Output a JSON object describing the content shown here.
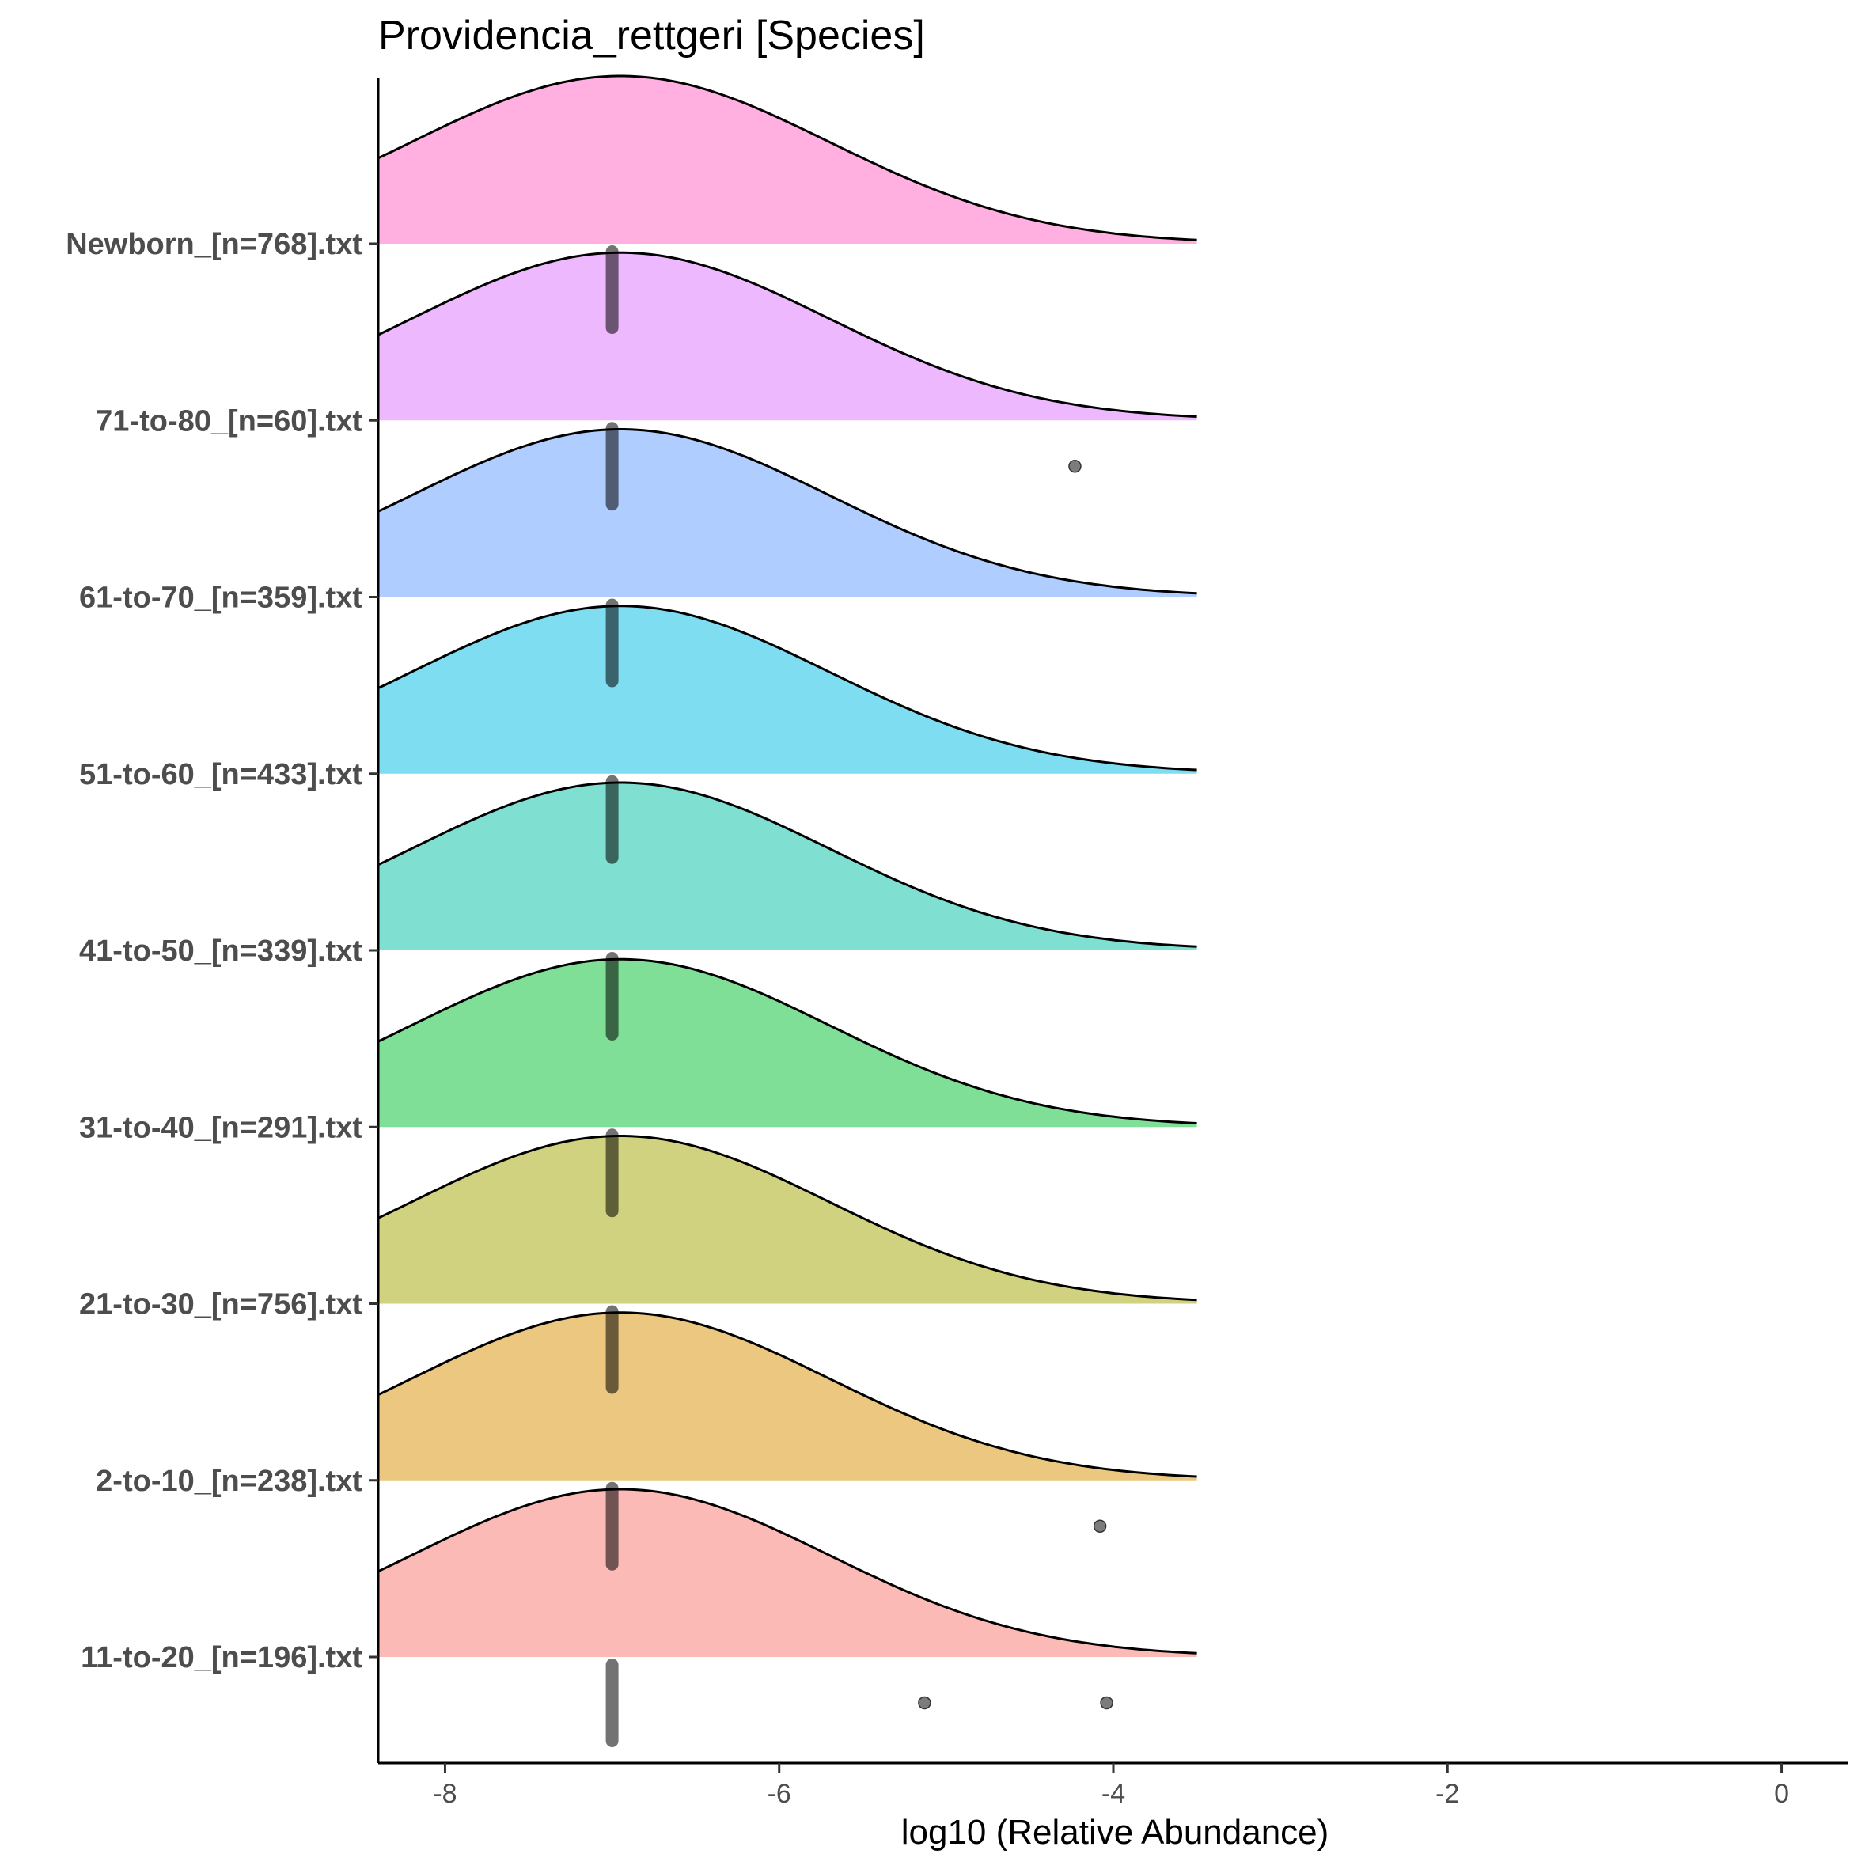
{
  "chart_data": {
    "type": "ridgeline",
    "title": "Providencia_rettgeri [Species]",
    "xlabel": "log10 (Relative Abundance)",
    "ylabel": "",
    "xlim": [
      -8.4,
      0.4
    ],
    "x_ticks": [
      -8,
      -6,
      -4,
      -2,
      0
    ],
    "x_tick_labels": [
      "-8",
      "-6",
      "-4",
      "-2",
      "0"
    ],
    "density_range": [
      -8.4,
      -3.5
    ],
    "series": [
      {
        "name": "11-to-20_[n=196].txt",
        "color": "#F8766D",
        "density_peak": -6.95,
        "density_sd": 1.25,
        "median": -7,
        "box": [
          -7,
          -7
        ],
        "outliers": [
          -5.13,
          -4.04
        ]
      },
      {
        "name": "2-to-10_[n=238].txt",
        "color": "#D89000",
        "density_peak": -6.95,
        "density_sd": 1.25,
        "median": -7,
        "box": [
          -7,
          -7
        ],
        "outliers": [
          -4.08
        ]
      },
      {
        "name": "21-to-30_[n=756].txt",
        "color": "#A3A500",
        "density_peak": -6.95,
        "density_sd": 1.25,
        "median": -7,
        "box": [
          -7,
          -7
        ],
        "outliers": []
      },
      {
        "name": "31-to-40_[n=291].txt",
        "color": "#00BF2F",
        "density_peak": -6.95,
        "density_sd": 1.25,
        "median": -7,
        "box": [
          -7,
          -7
        ],
        "outliers": []
      },
      {
        "name": "41-to-50_[n=339].txt",
        "color": "#00BFA3",
        "density_peak": -6.95,
        "density_sd": 1.25,
        "median": -7,
        "box": [
          -7,
          -7
        ],
        "outliers": []
      },
      {
        "name": "51-to-60_[n=433].txt",
        "color": "#00BBE5",
        "density_peak": -6.95,
        "density_sd": 1.25,
        "median": -7,
        "box": [
          -7,
          -7
        ],
        "outliers": []
      },
      {
        "name": "61-to-70_[n=359].txt",
        "color": "#619CFF",
        "density_peak": -6.95,
        "density_sd": 1.25,
        "median": -7,
        "box": [
          -7,
          -7
        ],
        "outliers": []
      },
      {
        "name": "71-to-80_[n=60].txt",
        "color": "#DB72FB",
        "density_peak": -6.95,
        "density_sd": 1.25,
        "median": -7,
        "box": [
          -7,
          -7
        ],
        "outliers": [
          -4.23
        ]
      },
      {
        "name": "Newborn_[n=768].txt",
        "color": "#FF61C3",
        "density_peak": -6.95,
        "density_sd": 1.25,
        "median": -7,
        "box": [
          -7,
          -7
        ],
        "outliers": []
      }
    ]
  }
}
